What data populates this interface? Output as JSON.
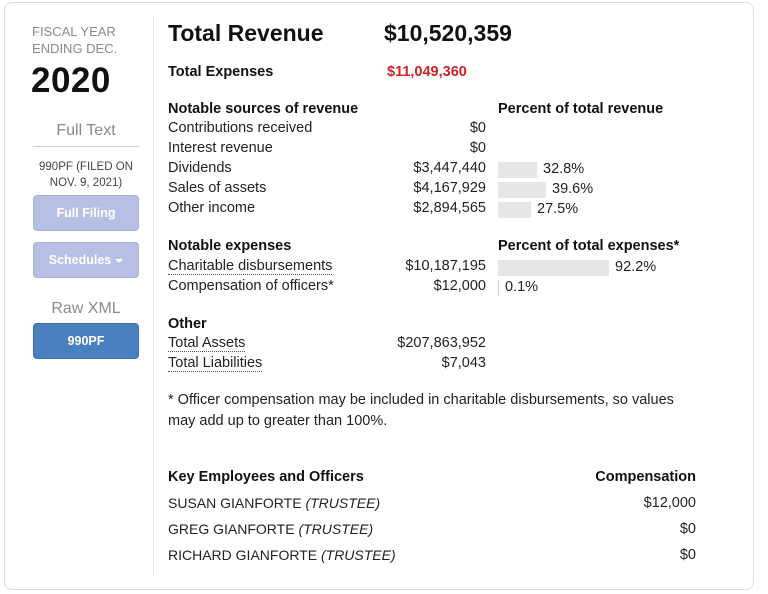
{
  "sidebar": {
    "fiscal_year_label": "FISCAL YEAR ENDING DEC.",
    "year": "2020",
    "full_text_label": "Full Text",
    "filed_text": "990PF (FILED ON NOV. 9, 2021)",
    "full_filing_button": "Full Filing",
    "schedules_button": "Schedules",
    "raw_xml_label": "Raw XML",
    "xml_button": "990PF"
  },
  "summary": {
    "total_revenue_label": "Total Revenue",
    "total_revenue_value": "$10,520,359",
    "total_expenses_label": "Total Expenses",
    "total_expenses_value": "$11,049,360"
  },
  "revenue": {
    "heading": "Notable sources of revenue",
    "percent_heading": "Percent of total revenue",
    "rows": [
      {
        "label": "Contributions received",
        "value": "$0",
        "percent": null,
        "percent_text": ""
      },
      {
        "label": "Interest revenue",
        "value": "$0",
        "percent": null,
        "percent_text": ""
      },
      {
        "label": "Dividends",
        "value": "$3,447,440",
        "percent": 32.8,
        "percent_text": "32.8%"
      },
      {
        "label": "Sales of assets",
        "value": "$4,167,929",
        "percent": 39.6,
        "percent_text": "39.6%"
      },
      {
        "label": "Other income",
        "value": "$2,894,565",
        "percent": 27.5,
        "percent_text": "27.5%"
      }
    ]
  },
  "expenses": {
    "heading": "Notable expenses",
    "percent_heading": "Percent of total expenses*",
    "rows": [
      {
        "label": "Charitable disbursements",
        "value": "$10,187,195",
        "percent": 92.2,
        "percent_text": "92.2%"
      },
      {
        "label": "Compensation of officers*",
        "value": "$12,000",
        "percent": 0.1,
        "percent_text": "0.1%"
      }
    ]
  },
  "other": {
    "heading": "Other",
    "total_assets_label": "Total Assets",
    "total_assets_value": "$207,863,952",
    "total_liabilities_label": "Total Liabilities",
    "total_liabilities_value": "$7,043"
  },
  "note": "* Officer compensation may be included in charitable disbursements, so values may add up to greater than 100%.",
  "employees": {
    "heading": "Key Employees and Officers",
    "comp_heading": "Compensation",
    "rows": [
      {
        "name": "SUSAN GIANFORTE",
        "title": "(TRUSTEE)",
        "comp": "$12,000"
      },
      {
        "name": "GREG GIANFORTE",
        "title": "(TRUSTEE)",
        "comp": "$0"
      },
      {
        "name": "RICHARD GIANFORTE",
        "title": "(TRUSTEE)",
        "comp": "$0"
      }
    ]
  },
  "colors": {
    "accent_blue": "#4a80c0",
    "light_button": "#b7bfe4",
    "red": "#cc2229",
    "bar": "#e6e6e6"
  }
}
